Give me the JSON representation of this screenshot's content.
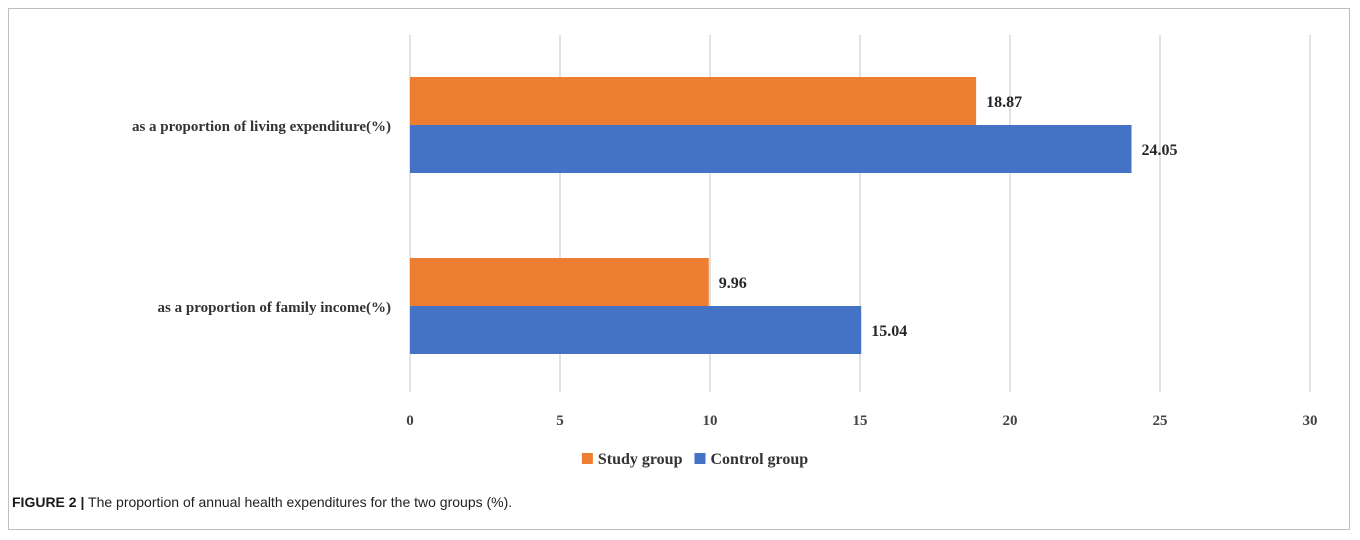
{
  "chart_data": {
    "type": "bar",
    "orientation": "horizontal",
    "categories": [
      "as a proportion of living expenditure(%)",
      "as a proportion of family income(%)"
    ],
    "series": [
      {
        "name": "Study group",
        "color": "#ed7d31",
        "values": [
          18.87,
          9.96
        ]
      },
      {
        "name": "Control group",
        "color": "#4472c4",
        "values": [
          24.05,
          15.04
        ]
      }
    ],
    "xticks": [
      "0",
      "5",
      "10",
      "15",
      "20",
      "25",
      "30"
    ],
    "xlim": [
      0,
      30
    ],
    "grid": true,
    "legend_position": "bottom"
  },
  "caption": {
    "label": "FIGURE 2 |",
    "text": "The proportion of annual health expenditures for the two groups (%)."
  }
}
